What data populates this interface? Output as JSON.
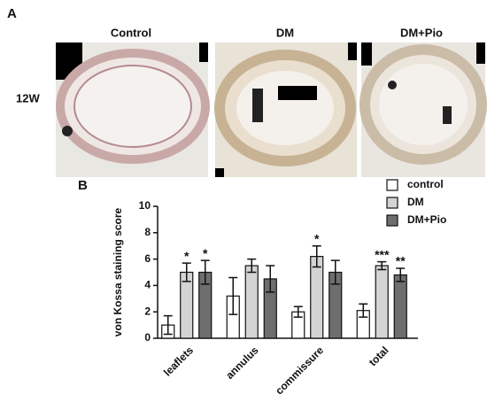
{
  "panel_a": {
    "label": "A",
    "columns": [
      "Control",
      "DM",
      "DM+Pio"
    ],
    "row_label": "12W"
  },
  "panel_b_label": "B",
  "chart_data": {
    "type": "bar",
    "ylabel": "von Kossa staining score",
    "categories": [
      "leaflets",
      "annulus",
      "commissure",
      "total"
    ],
    "series": [
      {
        "name": "control",
        "color": "#ffffff",
        "values": [
          1.0,
          3.2,
          2.0,
          2.1
        ],
        "errors": [
          0.7,
          1.4,
          0.4,
          0.5
        ],
        "significance": [
          null,
          null,
          null,
          null
        ]
      },
      {
        "name": "DM",
        "color": "#d4d4d4",
        "values": [
          5.0,
          5.5,
          6.2,
          5.5
        ],
        "errors": [
          0.7,
          0.5,
          0.8,
          0.3
        ],
        "significance": [
          "*",
          null,
          "*",
          "***"
        ]
      },
      {
        "name": "DM+Pio",
        "color": "#6e6e6e",
        "values": [
          5.0,
          4.5,
          5.0,
          4.8
        ],
        "errors": [
          0.9,
          1.0,
          0.9,
          0.5
        ],
        "significance": [
          "*",
          null,
          null,
          "**"
        ]
      }
    ],
    "ylim": [
      0,
      10
    ],
    "yticks": [
      0,
      2,
      4,
      6,
      8,
      10
    ],
    "legend": "top-right"
  }
}
